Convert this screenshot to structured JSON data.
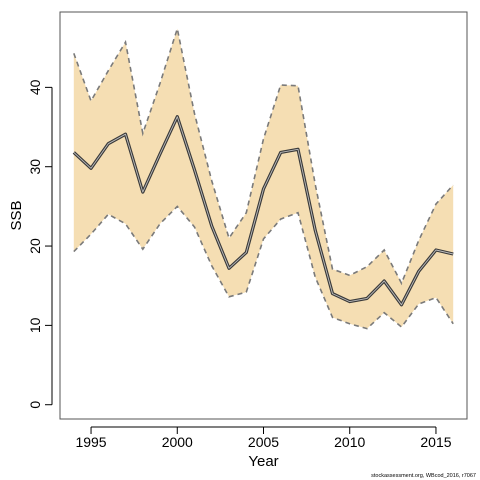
{
  "chart_data": {
    "type": "area",
    "xlabel": "Year",
    "ylabel": "SSB",
    "xlim": [
      1993.2,
      2016.8
    ],
    "ylim": [
      -1.8,
      49.5
    ],
    "x_ticks": [
      1995,
      2000,
      2005,
      2010,
      2015
    ],
    "y_ticks": [
      0,
      10,
      20,
      30,
      40
    ],
    "grid": false,
    "legend": "none",
    "colors": {
      "band": "#f5deb3",
      "line": "#3a3a3a",
      "bound": "#7a7a7a",
      "frame": "#555555"
    },
    "years": [
      1994,
      1995,
      1996,
      1997,
      1998,
      1999,
      2000,
      2001,
      2002,
      2003,
      2004,
      2005,
      2006,
      2007,
      2008,
      2009,
      2010,
      2011,
      2012,
      2013,
      2014,
      2015,
      2016
    ],
    "series": [
      {
        "role": "estimate",
        "values": [
          31.8,
          29.8,
          32.9,
          34.1,
          26.8,
          31.6,
          36.3,
          29.6,
          22.5,
          17.2,
          19.2,
          27.2,
          31.8,
          32.2,
          22.0,
          14.0,
          13.0,
          13.4,
          15.6,
          12.6,
          16.8,
          19.5,
          19.0
        ]
      },
      {
        "role": "upper",
        "values": [
          44.3,
          38.3,
          42.1,
          45.7,
          34.2,
          40.5,
          47.4,
          36.7,
          28.2,
          21.0,
          24.2,
          33.5,
          40.3,
          40.2,
          27.8,
          17.1,
          16.3,
          17.4,
          19.5,
          15.3,
          20.7,
          25.3,
          27.7
        ]
      },
      {
        "role": "lower",
        "values": [
          19.3,
          21.5,
          24.0,
          22.8,
          19.6,
          22.8,
          25.0,
          22.4,
          17.5,
          13.6,
          14.2,
          20.9,
          23.4,
          24.2,
          16.1,
          11.0,
          10.2,
          9.6,
          11.6,
          9.8,
          12.7,
          13.5,
          10.2
        ]
      }
    ]
  },
  "footnote": "stockassessment.org, WBcod_2016, r7067"
}
